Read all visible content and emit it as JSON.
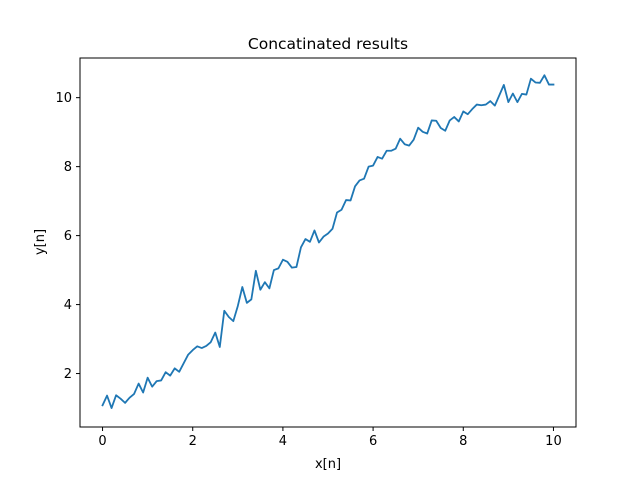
{
  "chart_data": {
    "type": "line",
    "title": "Concatinated results",
    "xlabel": "x[n]",
    "ylabel": "y[n]",
    "xlim": [
      -0.5,
      10.5
    ],
    "ylim": [
      0.45,
      11.15
    ],
    "xticks": [
      0,
      2,
      4,
      6,
      8,
      10
    ],
    "yticks": [
      2,
      4,
      6,
      8,
      10
    ],
    "grid": false,
    "series": [
      {
        "color": "#1f77b4",
        "x": [
          0.0,
          0.1,
          0.2,
          0.3,
          0.4,
          0.5,
          0.6,
          0.7,
          0.8,
          0.9,
          1.0,
          1.1,
          1.2,
          1.3,
          1.4,
          1.5,
          1.6,
          1.7,
          1.8,
          1.9,
          2.0,
          2.1,
          2.2,
          2.3,
          2.4,
          2.5,
          2.6,
          2.7,
          2.8,
          2.9,
          3.0,
          3.1,
          3.2,
          3.3,
          3.4,
          3.5,
          3.6,
          3.7,
          3.8,
          3.9,
          4.0,
          4.1,
          4.2,
          4.3,
          4.4,
          4.5,
          4.6,
          4.7,
          4.8,
          4.9,
          5.0,
          5.1,
          5.2,
          5.3,
          5.4,
          5.5,
          5.6,
          5.7,
          5.8,
          5.9,
          6.0,
          6.1,
          6.2,
          6.3,
          6.4,
          6.5,
          6.6,
          6.7,
          6.8,
          6.9,
          7.0,
          7.1,
          7.2,
          7.3,
          7.4,
          7.5,
          7.6,
          7.7,
          7.8,
          7.9,
          8.0,
          8.1,
          8.2,
          8.3,
          8.4,
          8.5,
          8.6,
          8.7,
          8.8,
          8.9,
          9.0,
          9.1,
          9.2,
          9.3,
          9.4,
          9.5,
          9.6,
          9.7,
          9.8,
          9.9,
          10.0
        ],
        "y": [
          1.08,
          1.36,
          1.0,
          1.37,
          1.27,
          1.15,
          1.3,
          1.41,
          1.71,
          1.45,
          1.88,
          1.62,
          1.78,
          1.8,
          2.04,
          1.94,
          2.15,
          2.05,
          2.3,
          2.55,
          2.68,
          2.79,
          2.74,
          2.8,
          2.91,
          3.19,
          2.77,
          3.82,
          3.64,
          3.52,
          3.96,
          4.51,
          4.05,
          4.15,
          4.98,
          4.43,
          4.65,
          4.47,
          5.0,
          5.05,
          5.3,
          5.24,
          5.07,
          5.09,
          5.66,
          5.9,
          5.82,
          6.15,
          5.8,
          5.97,
          6.06,
          6.2,
          6.67,
          6.75,
          7.03,
          7.02,
          7.43,
          7.6,
          7.65,
          8.0,
          8.03,
          8.28,
          8.23,
          8.46,
          8.46,
          8.52,
          8.81,
          8.65,
          8.61,
          8.78,
          9.13,
          9.01,
          8.96,
          9.34,
          9.33,
          9.12,
          9.04,
          9.34,
          9.44,
          9.31,
          9.6,
          9.52,
          9.67,
          9.8,
          9.78,
          9.8,
          9.9,
          9.77,
          10.07,
          10.37,
          9.87,
          10.12,
          9.87,
          10.11,
          10.09,
          10.55,
          10.44,
          10.43,
          10.65,
          10.38,
          10.38
        ]
      }
    ]
  }
}
